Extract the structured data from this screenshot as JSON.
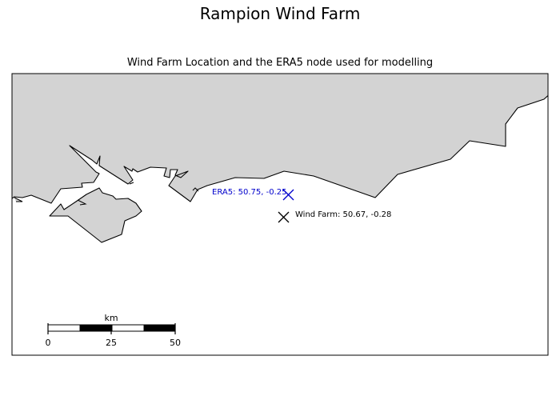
{
  "title": "Rampion Wind Farm",
  "subtitle": "Wind Farm Location and the ERA5 node used for modelling",
  "colors": {
    "land": "#d3d3d3",
    "coast": "#000000",
    "era5_marker": "#0000cc",
    "wind_farm_marker": "#000000"
  },
  "markers": [
    {
      "id": "era5",
      "label": "ERA5: 50.75, -0.25",
      "marker": "x",
      "color": "#0000cc"
    },
    {
      "id": "wind_farm",
      "label": "Wind Farm: 50.67, -0.28",
      "marker": "x",
      "color": "#000000"
    }
  ],
  "scale_bar": {
    "unit": "km",
    "ticks": [
      "0",
      "25",
      "50"
    ]
  }
}
